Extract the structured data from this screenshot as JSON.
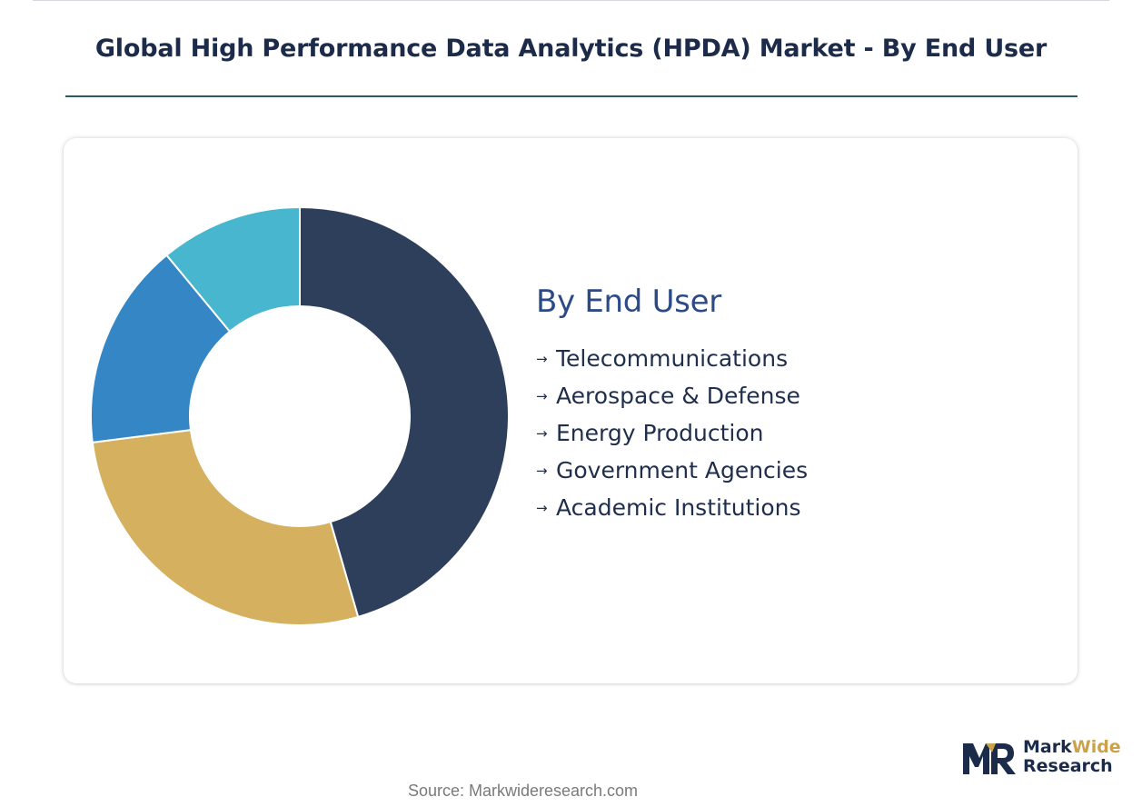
{
  "title": "Global High Performance Data Analytics (HPDA) Market - By End User",
  "legend_title": "By End User",
  "source": "Source: Markwideresearch.com",
  "logo": {
    "line1_a": "Mark",
    "line1_b": "Wide",
    "line2": "Research"
  },
  "colors": {
    "navy": "#2e3f5c",
    "gold": "#d4b05f",
    "blue": "#3487c4",
    "cyan": "#47b6ce",
    "title": "#1c2b4a",
    "legend_title": "#2c4a86"
  },
  "chart_data": {
    "type": "pie",
    "donut": true,
    "categories": [
      "Telecommunications",
      "Aerospace & Defense",
      "Energy Production",
      "Government Agencies",
      "Academic Institutions"
    ],
    "slices": [
      {
        "label": "Telecommunications",
        "value": 45.5,
        "color": "#2e3f5c"
      },
      {
        "label": "Aerospace & Defense",
        "value": 27.5,
        "color": "#d4b05f"
      },
      {
        "label": "Energy Production",
        "value": 16.0,
        "color": "#3487c4"
      },
      {
        "label": "Government Agencies",
        "value": 11.0,
        "color": "#47b6ce"
      }
    ],
    "legend_items": [
      "Telecommunications",
      "Aerospace & Defense",
      "Energy Production",
      "Government Agencies",
      "Academic Institutions"
    ],
    "legend_position": "right"
  }
}
